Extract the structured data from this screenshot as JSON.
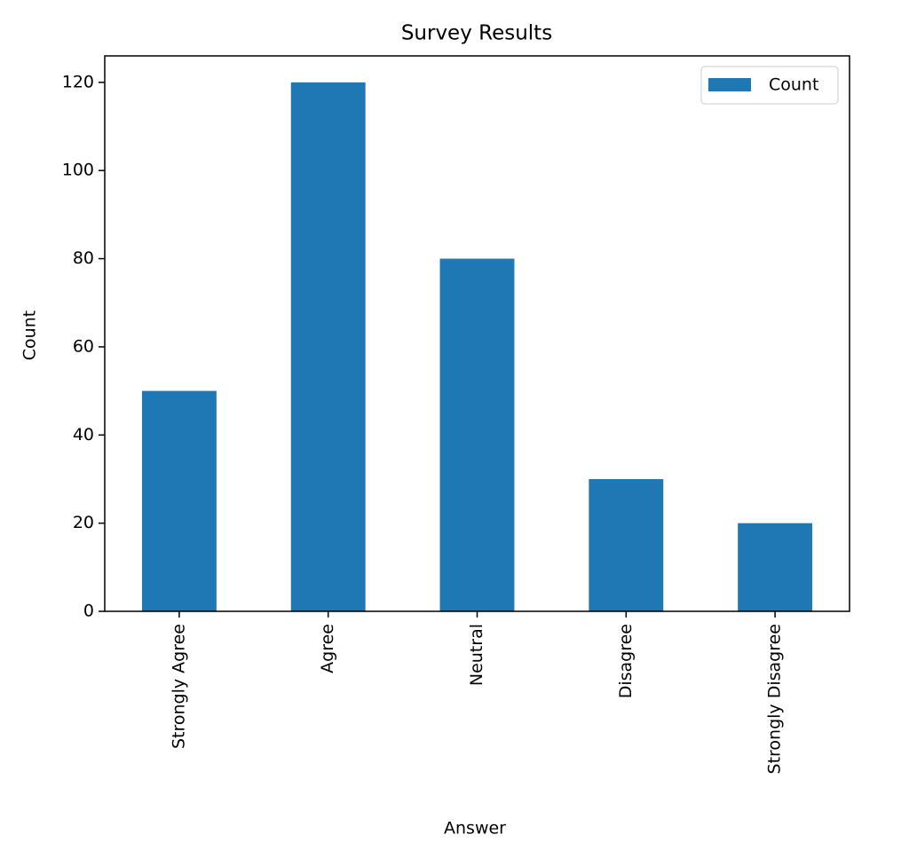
{
  "chart_data": {
    "type": "bar",
    "title": "Survey Results",
    "x_label": "Answer",
    "y_label": "Count",
    "categories": [
      "Strongly Agree",
      "Agree",
      "Neutral",
      "Disagree",
      "Strongly Disagree"
    ],
    "series": [
      {
        "name": "Count",
        "color": "#1f77b4",
        "values": [
          50,
          120,
          80,
          30,
          20
        ]
      }
    ],
    "ylim": [
      0,
      126
    ],
    "yticks": [
      0,
      20,
      40,
      60,
      80,
      100,
      120
    ],
    "legend": "upper right",
    "grid": false
  }
}
